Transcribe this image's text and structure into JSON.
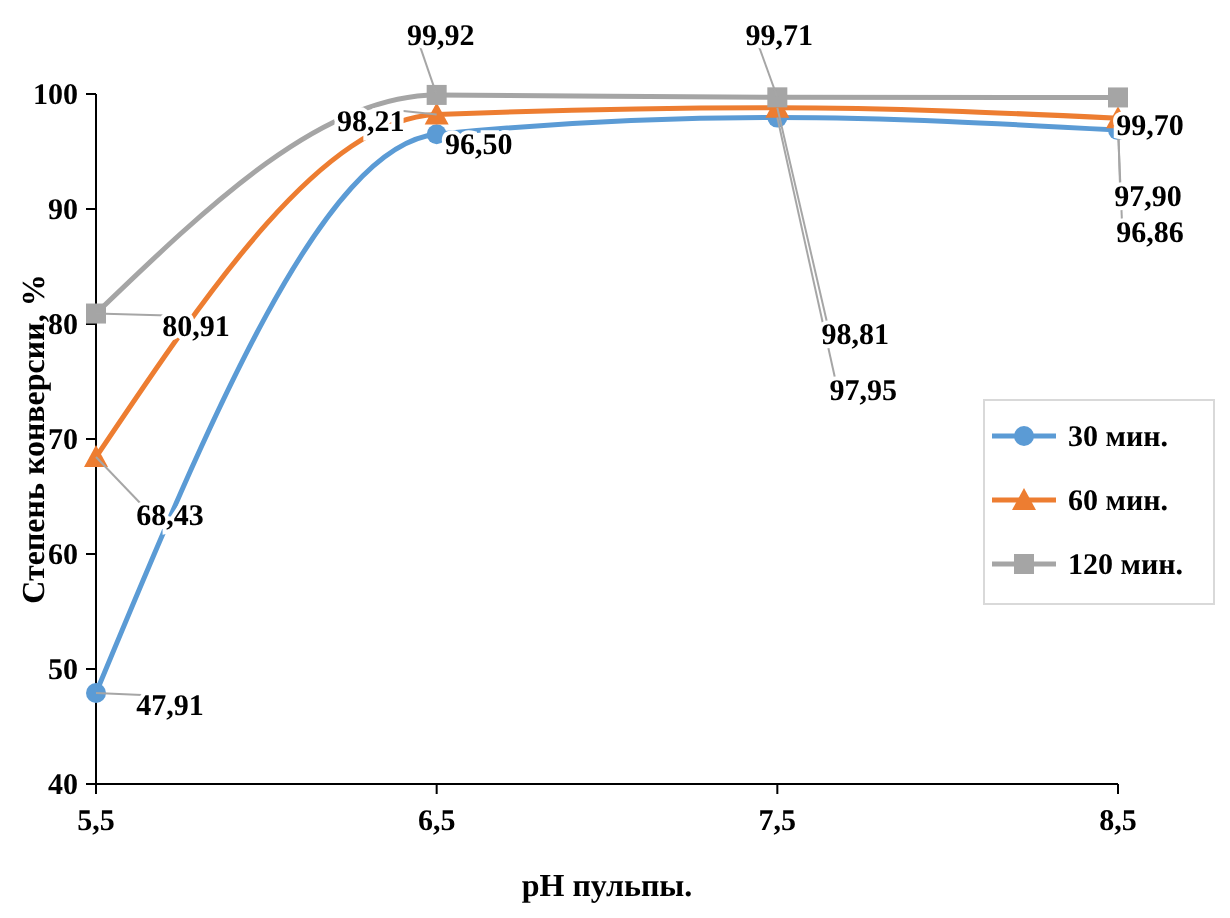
{
  "chart_data": {
    "type": "line",
    "xlabel": "pH пульпы.",
    "ylabel": "Степень конверсии, %",
    "categories": [
      "5,5",
      "6,5",
      "7,5",
      "8,5"
    ],
    "ylim": [
      40,
      100
    ],
    "yticks": [
      40,
      50,
      60,
      70,
      80,
      90,
      100
    ],
    "grid": false,
    "legend": "right",
    "series": [
      {
        "name": "30 мин.",
        "color": "#5b9bd5",
        "marker": "circle",
        "values": [
          47.91,
          96.5,
          97.95,
          96.86
        ],
        "value_labels": [
          "47,91",
          "96,50",
          "97,95",
          "96,86"
        ]
      },
      {
        "name": "60 мин.",
        "color": "#ed7d31",
        "marker": "triangle",
        "values": [
          68.43,
          98.21,
          98.81,
          97.9
        ],
        "value_labels": [
          "68,43",
          "98,21",
          "98,81",
          "97,90"
        ]
      },
      {
        "name": "120 мин.",
        "color": "#a5a5a5",
        "marker": "square",
        "values": [
          80.91,
          99.92,
          99.71,
          99.7
        ],
        "value_labels": [
          "80,91",
          "99,92",
          "99,71",
          "99,70"
        ]
      }
    ]
  }
}
